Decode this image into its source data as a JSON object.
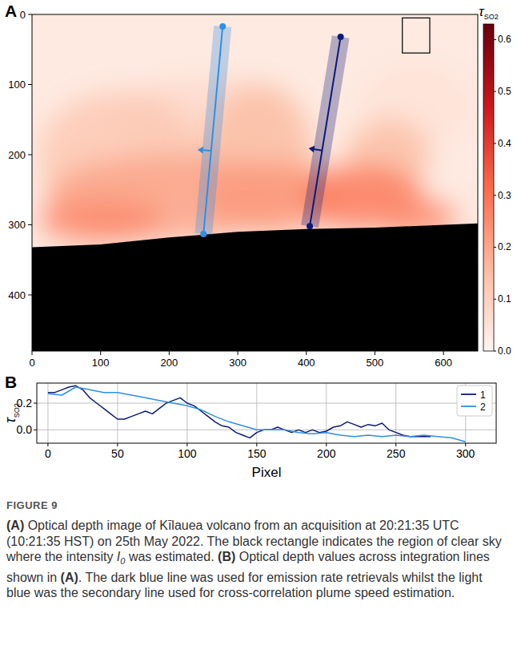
{
  "chart_data": [
    {
      "type": "image",
      "panel_label": "A",
      "xlim": [
        0,
        650
      ],
      "ylim": [
        0,
        480
      ],
      "xticks": [
        0,
        100,
        200,
        300,
        400,
        500,
        600
      ],
      "yticks": [
        0,
        100,
        200,
        300,
        400
      ],
      "colorbar": {
        "label": "τ",
        "label_subscript": "SO2",
        "range": [
          0,
          0.63
        ],
        "ticks": [
          {
            "value": 0,
            "label": "0.0"
          },
          0.1,
          0.2,
          0.3,
          0.4,
          0.5,
          0.6
        ]
      },
      "background_tau": 0.03,
      "plume": [
        {
          "x": 250,
          "y": 150,
          "rx": 130,
          "ry": 60,
          "tau": 0.07
        },
        {
          "x": 560,
          "y": 130,
          "rx": 80,
          "ry": 60,
          "tau": 0.05
        },
        {
          "x": 130,
          "y": 200,
          "rx": 120,
          "ry": 90,
          "tau": 0.12
        },
        {
          "x": 330,
          "y": 200,
          "rx": 80,
          "ry": 100,
          "tau": 0.15
        },
        {
          "x": 520,
          "y": 200,
          "rx": 60,
          "ry": 50,
          "tau": 0.15
        },
        {
          "x": 200,
          "y": 260,
          "rx": 180,
          "ry": 60,
          "tau": 0.2
        },
        {
          "x": 350,
          "y": 260,
          "rx": 100,
          "ry": 50,
          "tau": 0.22
        },
        {
          "x": 100,
          "y": 295,
          "rx": 90,
          "ry": 30,
          "tau": 0.25
        },
        {
          "x": 480,
          "y": 260,
          "rx": 90,
          "ry": 45,
          "tau": 0.28
        },
        {
          "x": 560,
          "y": 290,
          "rx": 60,
          "ry": 25,
          "tau": 0.25
        }
      ],
      "ground": [
        [
          0,
          332
        ],
        [
          100,
          328
        ],
        [
          200,
          318
        ],
        [
          300,
          310
        ],
        [
          400,
          306
        ],
        [
          500,
          304
        ],
        [
          650,
          298
        ],
        [
          650,
          480
        ],
        [
          0,
          480
        ]
      ],
      "clear_sky_box": [
        540,
        5,
        580,
        55
      ],
      "lines": [
        {
          "name": "1",
          "color": "#0d1b78",
          "start": [
            450,
            32
          ],
          "end": [
            405,
            302
          ]
        },
        {
          "name": "2",
          "color": "#2e8fe6",
          "start": [
            278,
            17
          ],
          "end": [
            250,
            313
          ]
        }
      ]
    },
    {
      "type": "line",
      "panel_label": "B",
      "x_label": "Pixel",
      "y_label": "τ",
      "y_label_subscript": "SO2",
      "xlim": [
        -8,
        322
      ],
      "ylim": [
        -0.1,
        0.35
      ],
      "xticks": [
        0,
        50,
        100,
        150,
        200,
        250,
        300
      ],
      "yticks": [
        {
          "value": 0,
          "label": "0.0"
        },
        0.2
      ],
      "grid": true,
      "legend": "upper right",
      "series": [
        {
          "name": "1",
          "color": "#0d1b78",
          "x": [
            0,
            5,
            10,
            15,
            20,
            25,
            30,
            35,
            40,
            45,
            50,
            55,
            60,
            65,
            70,
            75,
            80,
            85,
            90,
            95,
            100,
            105,
            110,
            115,
            120,
            125,
            130,
            135,
            140,
            145,
            150,
            155,
            160,
            165,
            170,
            175,
            180,
            185,
            190,
            195,
            200,
            205,
            210,
            215,
            220,
            225,
            230,
            235,
            240,
            245,
            250,
            255,
            260,
            265,
            270,
            275
          ],
          "values": [
            0.28,
            0.28,
            0.3,
            0.32,
            0.33,
            0.3,
            0.24,
            0.2,
            0.16,
            0.12,
            0.08,
            0.08,
            0.1,
            0.12,
            0.14,
            0.12,
            0.16,
            0.2,
            0.22,
            0.24,
            0.2,
            0.18,
            0.14,
            0.1,
            0.06,
            0.03,
            0.02,
            -0.02,
            -0.04,
            -0.06,
            -0.02,
            0.0,
            0.0,
            0.02,
            0.0,
            -0.02,
            0.0,
            -0.02,
            0.0,
            -0.02,
            -0.01,
            0.02,
            0.03,
            0.06,
            0.04,
            0.02,
            0.04,
            0.03,
            0.05,
            0.0,
            -0.02,
            -0.04,
            -0.05,
            -0.05,
            -0.05,
            -0.05
          ]
        },
        {
          "name": "2",
          "color": "#2e8fe6",
          "x": [
            0,
            10,
            20,
            30,
            40,
            50,
            60,
            70,
            80,
            90,
            100,
            110,
            120,
            130,
            140,
            150,
            160,
            170,
            180,
            190,
            200,
            210,
            220,
            230,
            240,
            250,
            260,
            270,
            280,
            290,
            300
          ],
          "values": [
            0.27,
            0.26,
            0.32,
            0.3,
            0.28,
            0.28,
            0.26,
            0.24,
            0.22,
            0.2,
            0.18,
            0.15,
            0.1,
            0.06,
            0.03,
            0.0,
            0.0,
            0.0,
            -0.02,
            -0.03,
            -0.02,
            -0.04,
            -0.05,
            -0.04,
            -0.05,
            -0.04,
            -0.05,
            -0.04,
            -0.05,
            -0.06,
            -0.09
          ]
        }
      ]
    }
  ],
  "caption": {
    "label": "FIGURE 9",
    "runs": [
      {
        "text": "(A)",
        "style": "bold"
      },
      {
        "text": " Optical depth image of Kīlauea volcano from an acquisition at 20:21:35 UTC (10:21:35 HST) on 25th May 2022. The black rectangle indicates the region of clear sky where the intensity "
      },
      {
        "text": "I",
        "style": "italic"
      },
      {
        "text": "0",
        "style": "sub"
      },
      {
        "text": " was estimated. "
      },
      {
        "text": "(B)",
        "style": "bold"
      },
      {
        "text": " Optical depth values across integration lines shown in "
      },
      {
        "text": "(A)",
        "style": "bold"
      },
      {
        "text": ". The dark blue line was used for emission rate retrievals whilst the light blue was the secondary line used for cross-correlation plume speed estimation."
      }
    ]
  }
}
